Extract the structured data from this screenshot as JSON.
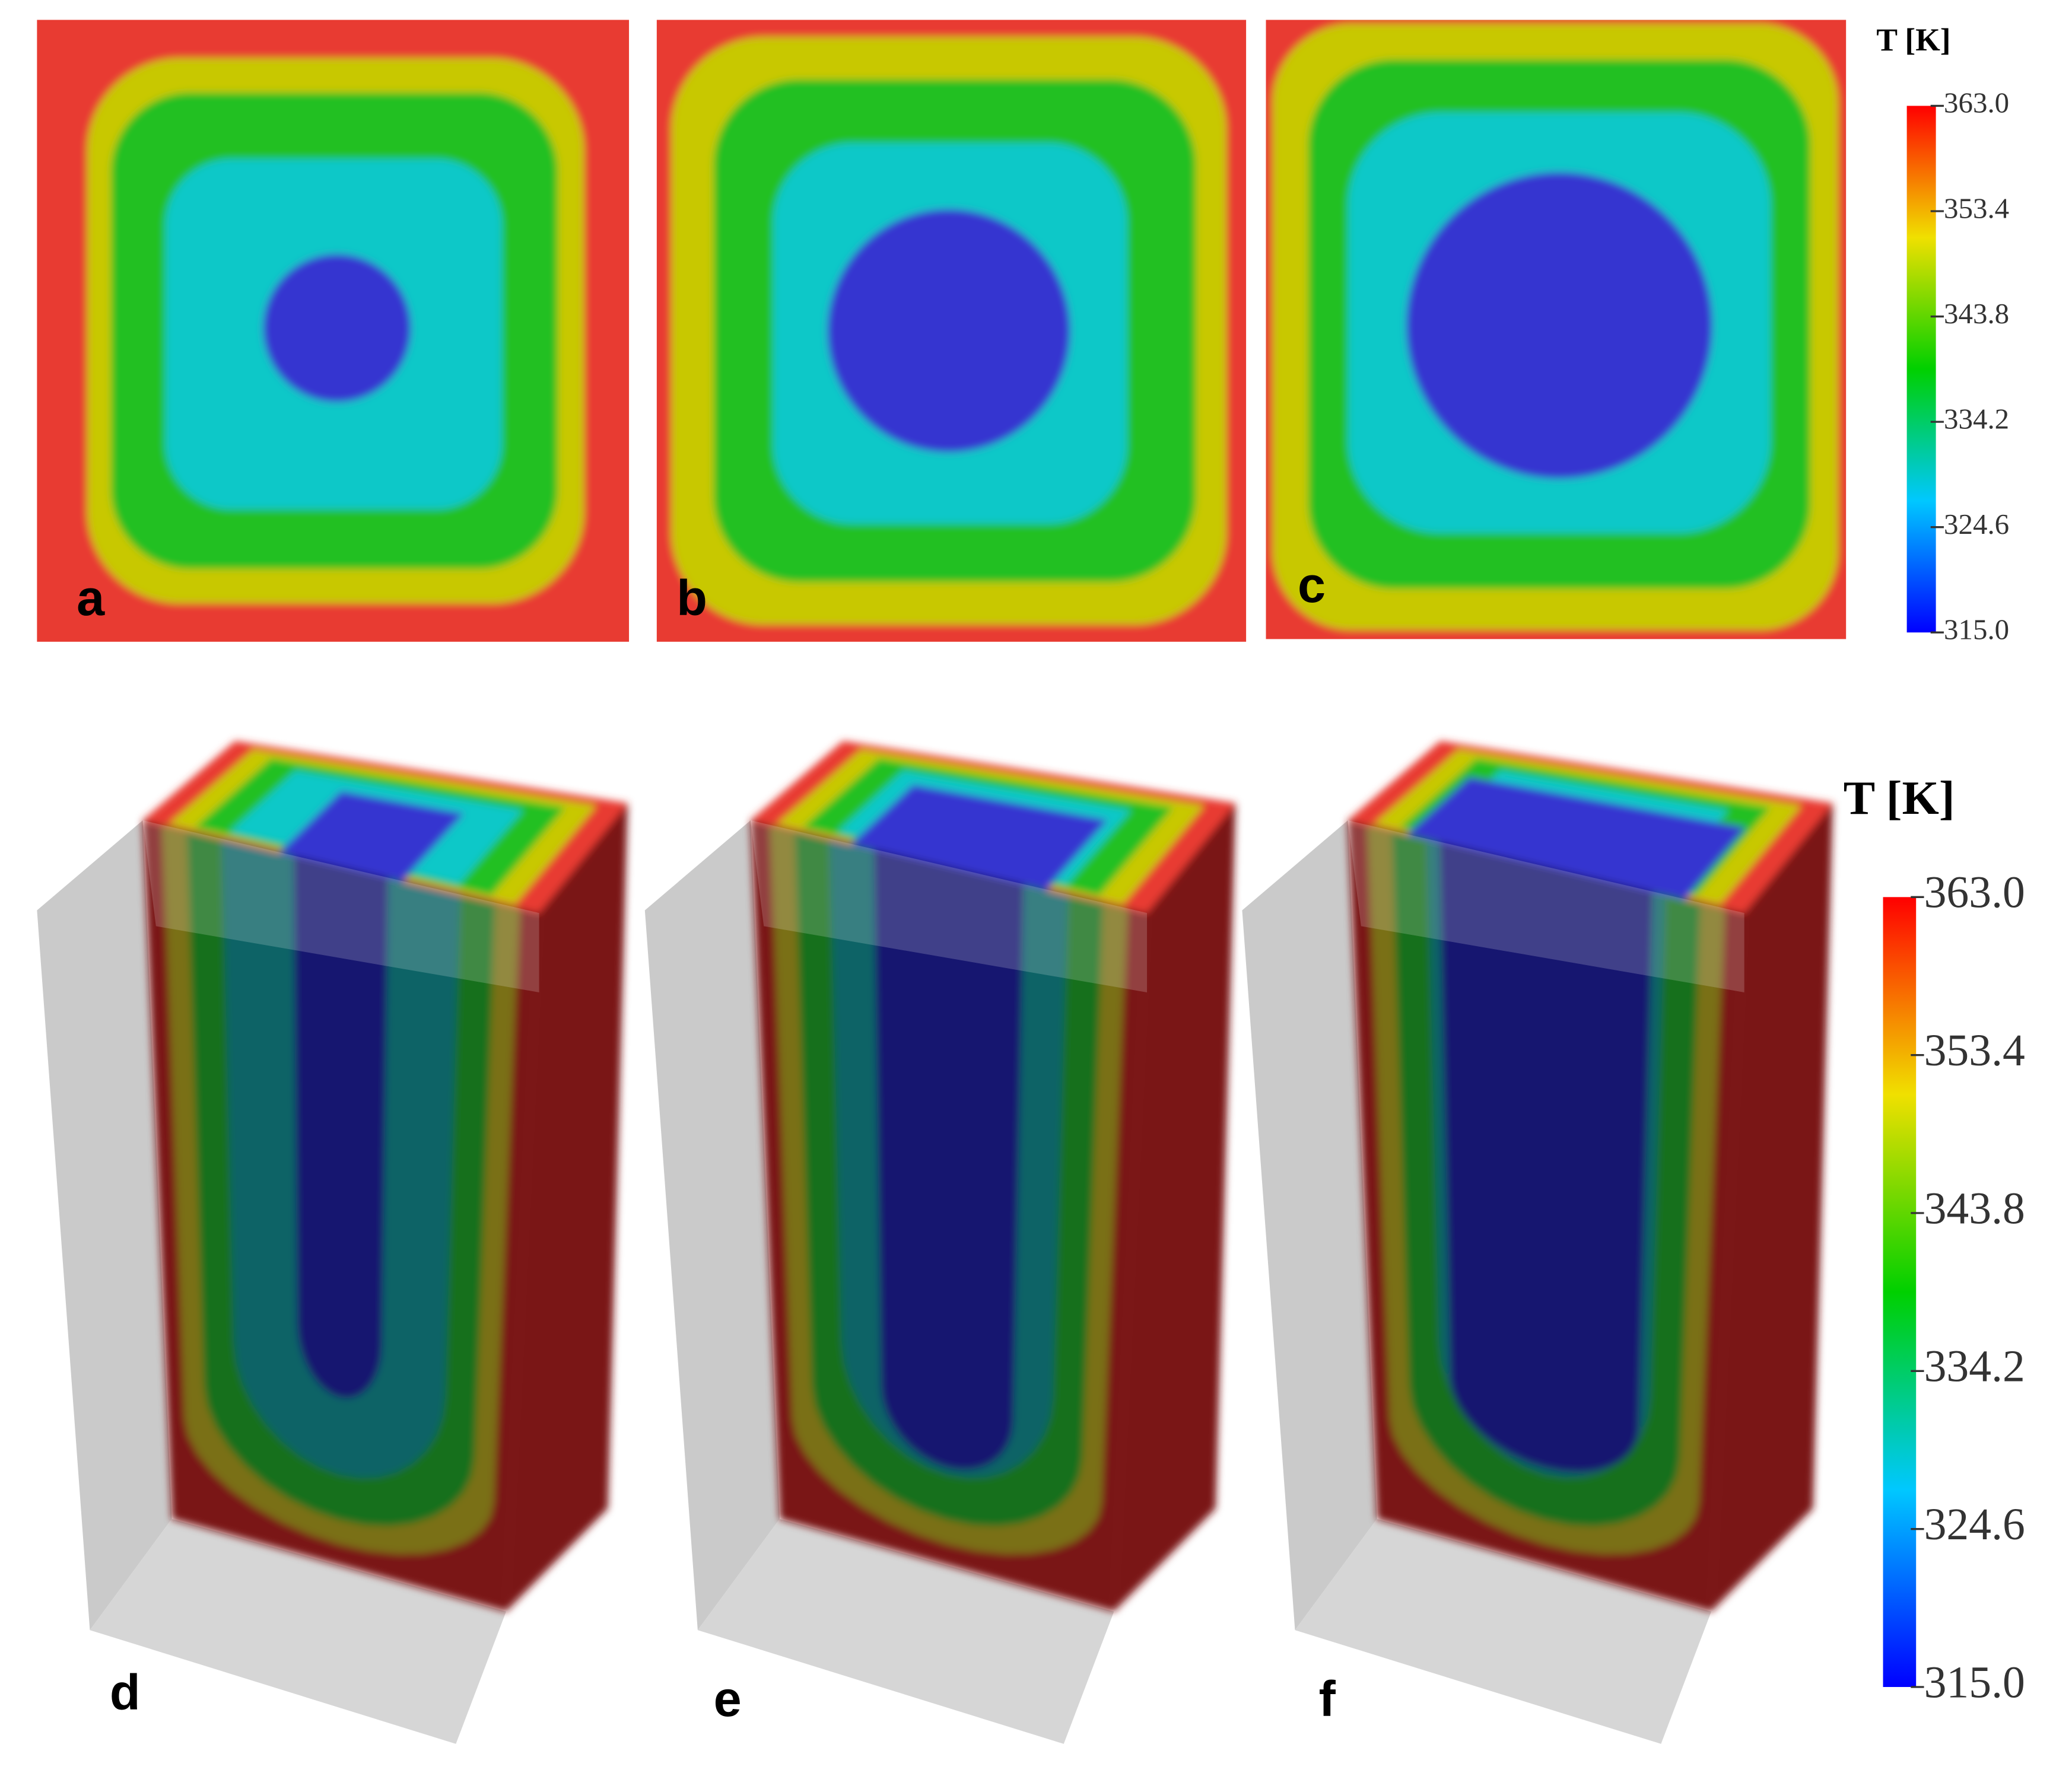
{
  "panel_labels": [
    "a",
    "b",
    "c",
    "d",
    "e",
    "f"
  ],
  "colorbars": [
    {
      "title": "T [K]",
      "range": [
        315,
        363
      ],
      "ticks": [
        {
          "value": 315,
          "label": "315.0"
        },
        {
          "value": 324.6,
          "label": "324.6"
        },
        {
          "value": 334.2,
          "label": "334.2"
        },
        {
          "value": 343.8,
          "label": "343.8"
        },
        {
          "value": 353.4,
          "label": "353.4"
        },
        {
          "value": 363,
          "label": "363.0"
        }
      ]
    },
    {
      "title": "T [K]",
      "range": [
        315,
        363
      ],
      "ticks": [
        {
          "value": 315,
          "label": "315.0"
        },
        {
          "value": 324.6,
          "label": "324.6"
        },
        {
          "value": 334.2,
          "label": "334.2"
        },
        {
          "value": 343.8,
          "label": "343.8"
        },
        {
          "value": 353.4,
          "label": "353.4"
        },
        {
          "value": 363,
          "label": "363.0"
        }
      ]
    }
  ]
}
